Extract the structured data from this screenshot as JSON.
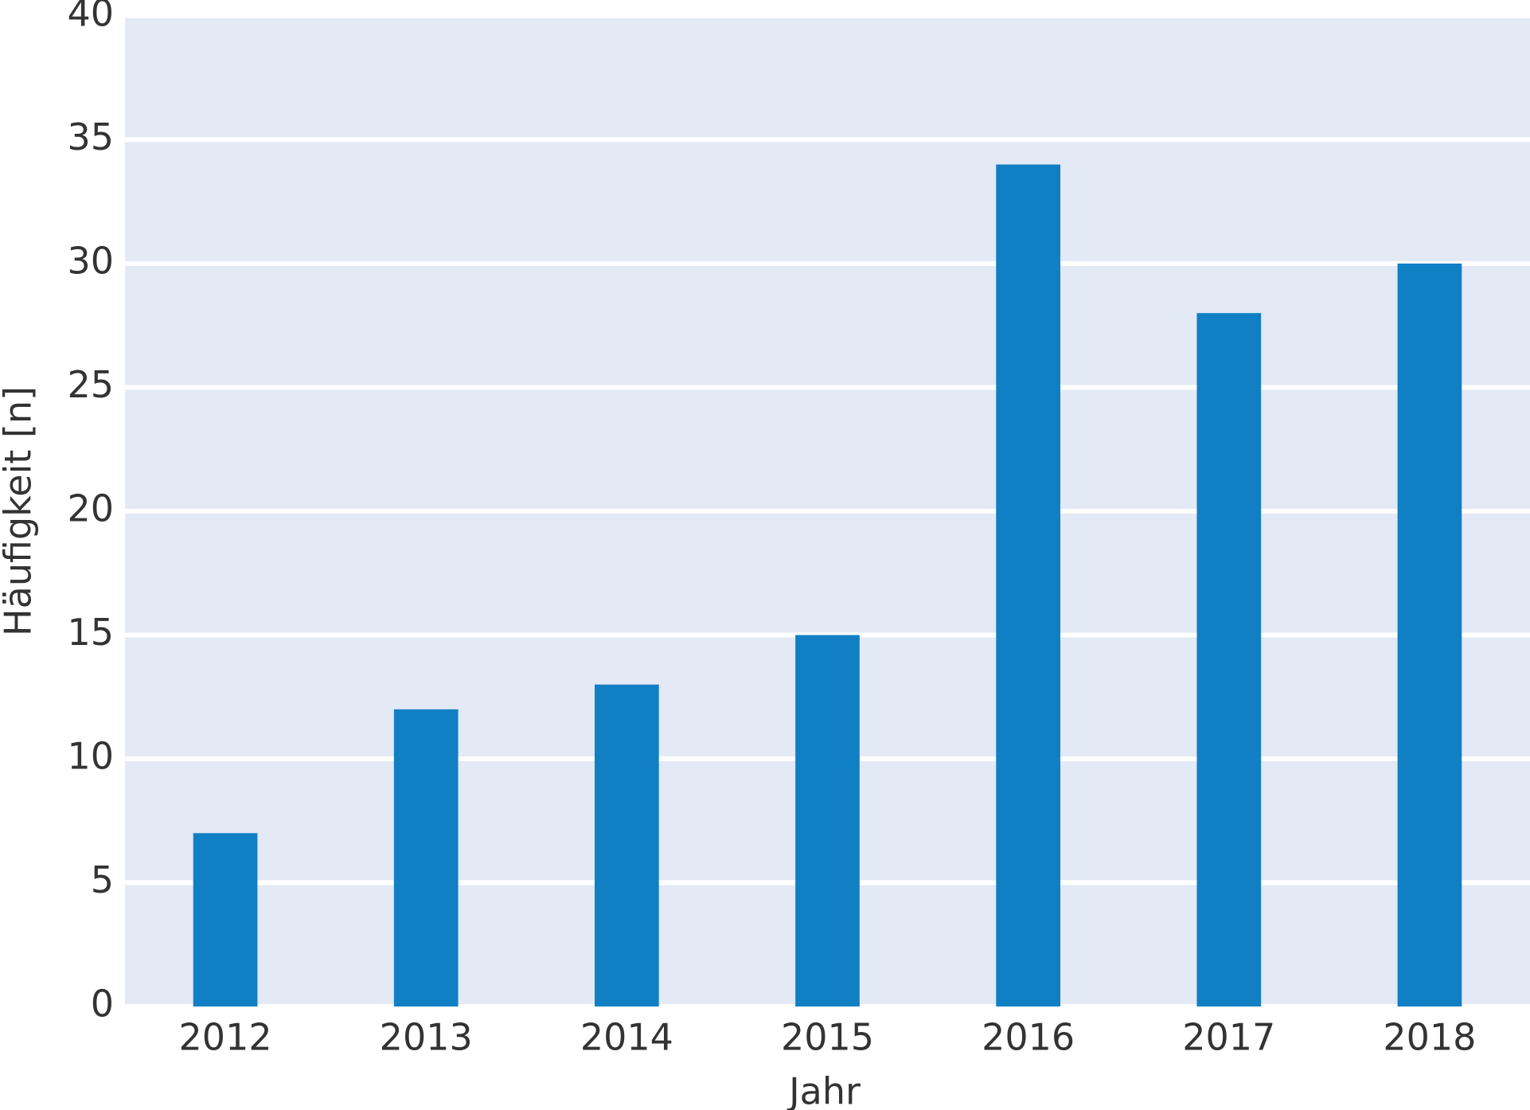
{
  "chart_data": {
    "type": "bar",
    "x_label": "Jahr",
    "y_label": "Häufigkeit [n]",
    "categories": [
      "2012",
      "2013",
      "2014",
      "2015",
      "2016",
      "2017",
      "2018"
    ],
    "values": [
      7,
      12,
      13,
      15,
      34,
      28,
      30
    ],
    "color": "#117fc4",
    "ylim": [
      0,
      40
    ],
    "yticks": [
      0,
      5,
      10,
      15,
      20,
      25,
      30,
      35,
      40
    ],
    "grid": true
  }
}
